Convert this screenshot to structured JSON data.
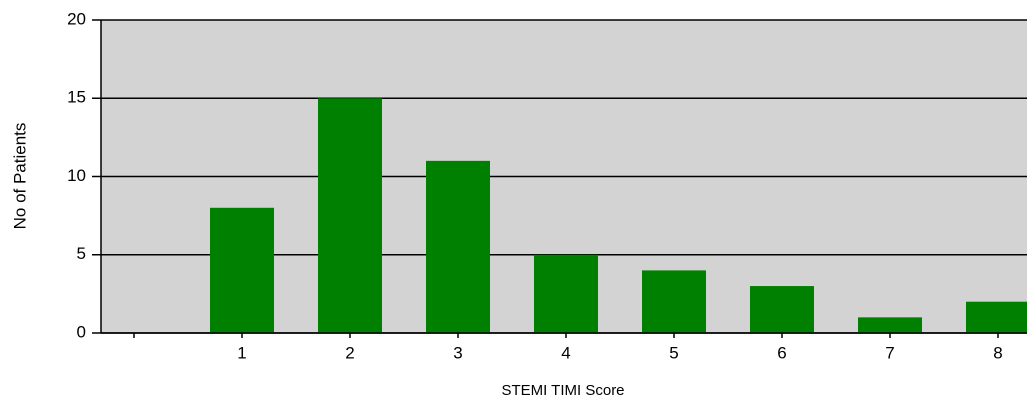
{
  "chart_data": {
    "type": "bar",
    "x_label": "STEMI TIMI Score",
    "y_label": "No of Patients",
    "categories": [
      null,
      "1",
      "2",
      "3",
      "4",
      "5",
      "6",
      "7",
      "8"
    ],
    "values": [
      0,
      8,
      15,
      11,
      5,
      4,
      3,
      1,
      2
    ],
    "color": "#008000",
    "background": "#d3d3d3",
    "ylim": [
      0,
      20
    ],
    "yticks": [
      0,
      5,
      10,
      15,
      20
    ],
    "grid": true
  }
}
